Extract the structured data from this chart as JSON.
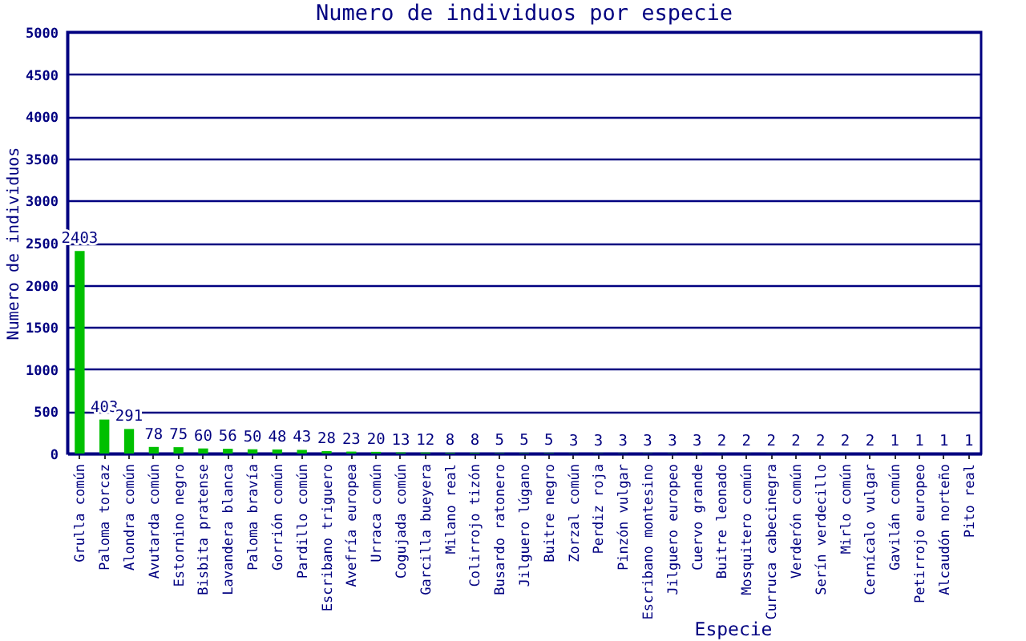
{
  "chart_data": {
    "type": "bar",
    "title": "Numero de individuos por especie",
    "xlabel": "Especie",
    "ylabel": "Numero de individuos",
    "categories": [
      "Grulla común",
      "Paloma torcaz",
      "Alondra común",
      "Avutarda común",
      "Estornino negro",
      "Bisbita pratense",
      "Lavandera blanca",
      "Paloma bravía",
      "Gorrión común",
      "Pardillo común",
      "Escribano triguero",
      "Avefría europea",
      "Urraca común",
      "Cogujada común",
      "Garcilla bueyera",
      "Milano real",
      "Colirrojo tizón",
      "Busardo ratonero",
      "Jilguero lúgano",
      "Buitre negro",
      "Zorzal común",
      "Perdiz roja",
      "Pinzón vulgar",
      "Escribano montesino",
      "Jilguero europeo",
      "Cuervo grande",
      "Buitre leonado",
      "Mosquitero común",
      "Curruca cabecinegra",
      "Verderón común",
      "Serín verdecillo",
      "Mirlo común",
      "Cernícalo vulgar",
      "Gavilán común",
      "Petirrojo europeo",
      "Alcaudón norteño",
      "Pito real"
    ],
    "values": [
      2403,
      403,
      291,
      78,
      75,
      60,
      56,
      50,
      48,
      43,
      28,
      23,
      20,
      13,
      12,
      8,
      8,
      5,
      5,
      5,
      3,
      3,
      3,
      3,
      3,
      3,
      2,
      2,
      2,
      2,
      2,
      2,
      2,
      1,
      1,
      1,
      1
    ],
    "color": "#00c000",
    "ylim": [
      0,
      5000
    ],
    "yticks": [
      0,
      500,
      1000,
      1500,
      2000,
      2500,
      3000,
      3500,
      4000,
      4500,
      5000
    ],
    "grid": "y",
    "data_labels": true
  }
}
